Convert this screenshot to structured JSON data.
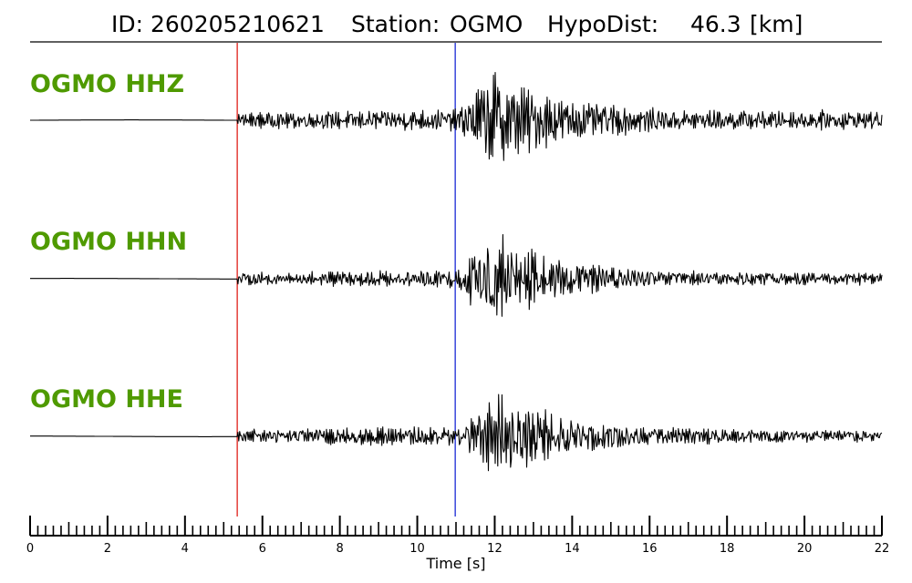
{
  "title": {
    "id_label": "ID:",
    "id_value": "260205210621",
    "station_label": "Station:",
    "station_value": "OGMO",
    "hypodist_label": "HypoDist:",
    "hypodist_value": "46.3",
    "hypodist_unit": "[km]"
  },
  "colors": {
    "trace": "#000000",
    "label": "#4f9a00",
    "p_pick": "#e0201a",
    "s_pick": "#1a2ad6",
    "axis": "#000000"
  },
  "chart_data": {
    "type": "line",
    "xlabel": "Time [s]",
    "xlim": [
      0,
      22
    ],
    "x_ticks": [
      "0",
      "2",
      "4",
      "6",
      "8",
      "10",
      "12",
      "14",
      "16",
      "18",
      "20",
      "22"
    ],
    "minor_tick_step": 0.2,
    "picks": [
      {
        "phase": "P",
        "time": 5.35
      },
      {
        "phase": "S",
        "time": 10.98
      }
    ],
    "series": [
      {
        "name": "OGMO HHZ",
        "noise_amp": 0.11,
        "p_amp": 0.18,
        "s_peak_amp": 1.0,
        "peak_time": 12.0,
        "coda_amp": 0.18
      },
      {
        "name": "OGMO HHN",
        "noise_amp": 0.1,
        "p_amp": 0.15,
        "s_peak_amp": 0.95,
        "peak_time": 11.9,
        "coda_amp": 0.12
      },
      {
        "name": "OGMO HHE",
        "noise_amp": 0.1,
        "p_amp": 0.16,
        "s_peak_amp": 0.85,
        "peak_time": 12.1,
        "coda_amp": 0.12
      }
    ]
  }
}
